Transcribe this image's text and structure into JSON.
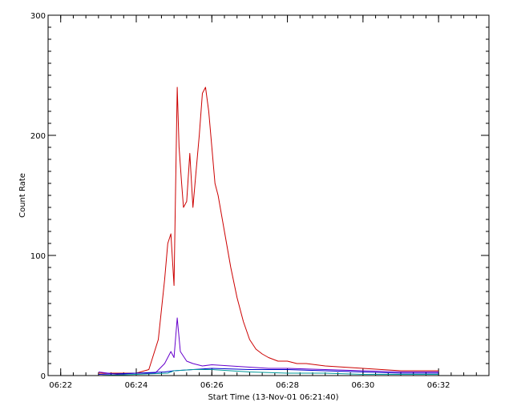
{
  "chart_data": {
    "type": "line",
    "title": "",
    "xlabel": "Start Time (13-Nov-01 06:21:40)",
    "ylabel": "Count Rate",
    "xlim": [
      "06:21:40",
      "06:33:20"
    ],
    "ylim": [
      0,
      300
    ],
    "x_ticks": [
      "06:22",
      "06:24",
      "06:26",
      "06:28",
      "06:30",
      "06:32"
    ],
    "y_ticks": [
      0,
      100,
      200,
      300
    ],
    "grid": false,
    "legend": "none",
    "series": [
      {
        "color": "#cc0000",
        "x": [
          "06:23:00",
          "06:23:30",
          "06:24:00",
          "06:24:20",
          "06:24:35",
          "06:24:45",
          "06:24:50",
          "06:24:55",
          "06:25:00",
          "06:25:05",
          "06:25:08",
          "06:25:12",
          "06:25:15",
          "06:25:20",
          "06:25:25",
          "06:25:30",
          "06:25:35",
          "06:25:40",
          "06:25:45",
          "06:25:50",
          "06:25:55",
          "06:26:00",
          "06:26:05",
          "06:26:10",
          "06:26:20",
          "06:26:30",
          "06:26:40",
          "06:26:50",
          "06:27:00",
          "06:27:10",
          "06:27:20",
          "06:27:30",
          "06:27:45",
          "06:28:00",
          "06:28:15",
          "06:28:30",
          "06:29:00",
          "06:29:30",
          "06:30:00",
          "06:30:30",
          "06:31:00",
          "06:31:30",
          "06:32:00"
        ],
        "values": [
          2,
          2,
          2,
          5,
          30,
          80,
          110,
          118,
          75,
          240,
          190,
          160,
          140,
          145,
          185,
          140,
          170,
          200,
          235,
          240,
          220,
          190,
          160,
          150,
          120,
          90,
          65,
          45,
          30,
          22,
          18,
          15,
          12,
          12,
          10,
          10,
          8,
          7,
          6,
          5,
          4,
          4,
          4
        ]
      },
      {
        "color": "#6600cc",
        "x": [
          "06:23:00",
          "06:23:30",
          "06:24:00",
          "06:24:30",
          "06:24:45",
          "06:24:55",
          "06:25:00",
          "06:25:05",
          "06:25:10",
          "06:25:20",
          "06:25:30",
          "06:25:45",
          "06:26:00",
          "06:26:30",
          "06:27:00",
          "06:27:30",
          "06:28:00",
          "06:29:00",
          "06:30:00",
          "06:31:00",
          "06:32:00"
        ],
        "values": [
          3,
          1,
          2,
          2,
          10,
          20,
          15,
          48,
          20,
          12,
          10,
          8,
          9,
          8,
          7,
          6,
          6,
          5,
          4,
          3,
          3
        ]
      },
      {
        "color": "#0000cc",
        "x": [
          "06:23:00",
          "06:24:00",
          "06:24:45",
          "06:25:00",
          "06:25:30",
          "06:26:00",
          "06:27:00",
          "06:28:00",
          "06:29:00",
          "06:30:00",
          "06:31:00",
          "06:32:00"
        ],
        "values": [
          1,
          2,
          3,
          4,
          5,
          6,
          5,
          5,
          4,
          3,
          2,
          2
        ]
      },
      {
        "color": "#009999",
        "x": [
          "06:23:00",
          "06:24:00",
          "06:24:50",
          "06:25:00",
          "06:25:30",
          "06:26:00",
          "06:26:30",
          "06:27:00",
          "06:28:00",
          "06:29:00",
          "06:30:00",
          "06:31:00",
          "06:32:00"
        ],
        "values": [
          0,
          1,
          2,
          4,
          5,
          5,
          4,
          3,
          2,
          2,
          1,
          1,
          1
        ]
      }
    ]
  }
}
